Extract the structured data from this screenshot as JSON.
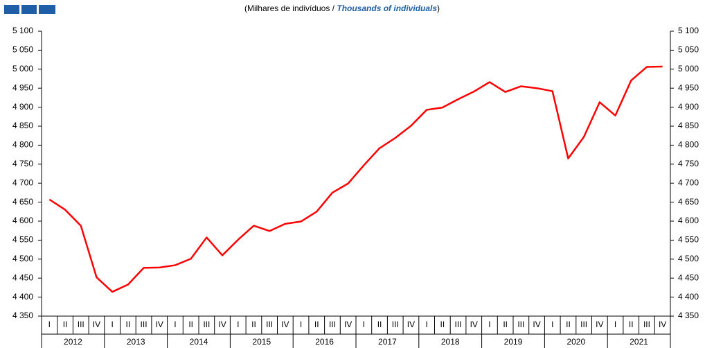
{
  "chart_data": {
    "type": "line",
    "title": [
      "(Milhares de indivíduos / ",
      "Thousands of individuals",
      ")"
    ],
    "categories": [
      "I",
      "II",
      "III",
      "IV",
      "I",
      "II",
      "III",
      "IV",
      "I",
      "II",
      "III",
      "IV",
      "I",
      "II",
      "III",
      "IV",
      "I",
      "II",
      "III",
      "IV",
      "I",
      "II",
      "III",
      "IV",
      "I",
      "II",
      "III",
      "IV",
      "I",
      "II",
      "III",
      "IV",
      "I",
      "II",
      "III",
      "IV",
      "I",
      "II",
      "III",
      "IV"
    ],
    "years": [
      "2012",
      "2013",
      "2014",
      "2015",
      "2016",
      "2017",
      "2018",
      "2019",
      "2020",
      "2021"
    ],
    "series": [
      {
        "color": "#ff0000",
        "values": [
          4657,
          4630,
          4588,
          4452,
          4414,
          4433,
          4477,
          4478,
          4484,
          4501,
          4557,
          4510,
          4551,
          4588,
          4574,
          4593,
          4599,
          4625,
          4675,
          4699,
          4747,
          4792,
          4819,
          4851,
          4893,
          4899,
          4921,
          4941,
          4966,
          4940,
          4955,
          4950,
          4942,
          4765,
          4822,
          4913,
          4878,
          4970,
          5006,
          5007
        ]
      }
    ],
    "ylim": [
      4350,
      5100
    ],
    "yticks": [
      {
        "value": 4350,
        "label": "4 350"
      },
      {
        "value": 4400,
        "label": "4 400"
      },
      {
        "value": 4450,
        "label": "4 450"
      },
      {
        "value": 4500,
        "label": "4 500"
      },
      {
        "value": 4550,
        "label": "4 550"
      },
      {
        "value": 4600,
        "label": "4 600"
      },
      {
        "value": 4650,
        "label": "4 650"
      },
      {
        "value": 4700,
        "label": "4 700"
      },
      {
        "value": 4750,
        "label": "4 750"
      },
      {
        "value": 4800,
        "label": "4 800"
      },
      {
        "value": 4850,
        "label": "4 850"
      },
      {
        "value": 4900,
        "label": "4 900"
      },
      {
        "value": 4950,
        "label": "4 950"
      },
      {
        "value": 5000,
        "label": "5 000"
      },
      {
        "value": 5050,
        "label": "5 050"
      },
      {
        "value": 5100,
        "label": "5 100"
      }
    ],
    "grid": false
  }
}
